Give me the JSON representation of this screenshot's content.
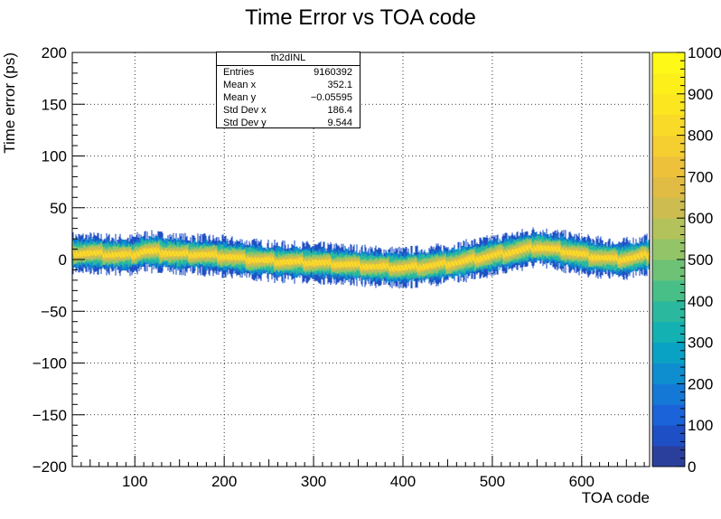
{
  "chart_data": {
    "type": "heatmap",
    "title": "Time Error vs TOA code",
    "xlabel": "TOA code",
    "ylabel": "Time error (ps)",
    "xlim": [
      30,
      676
    ],
    "ylim": [
      -200,
      200
    ],
    "x_ticks": [
      "100",
      "200",
      "300",
      "400",
      "500",
      "600"
    ],
    "y_ticks": [
      "200",
      "150",
      "100",
      "50",
      "0",
      "−50",
      "−100",
      "−150",
      "−200"
    ],
    "z_ticks": [
      "0",
      "100",
      "200",
      "300",
      "400",
      "500",
      "600",
      "700",
      "800",
      "900",
      "1000"
    ],
    "zlim": [
      0,
      1000
    ],
    "grid": true,
    "band_center": [
      {
        "x": 30,
        "y": 6
      },
      {
        "x": 50,
        "y": 6
      },
      {
        "x": 70,
        "y": 5
      },
      {
        "x": 95,
        "y": 4
      },
      {
        "x": 110,
        "y": 8
      },
      {
        "x": 130,
        "y": 7
      },
      {
        "x": 150,
        "y": 5
      },
      {
        "x": 170,
        "y": 5
      },
      {
        "x": 200,
        "y": 3
      },
      {
        "x": 230,
        "y": 0
      },
      {
        "x": 260,
        "y": -2
      },
      {
        "x": 300,
        "y": -3
      },
      {
        "x": 340,
        "y": -5
      },
      {
        "x": 370,
        "y": -7
      },
      {
        "x": 400,
        "y": -8
      },
      {
        "x": 430,
        "y": -6
      },
      {
        "x": 460,
        "y": -3
      },
      {
        "x": 490,
        "y": 2
      },
      {
        "x": 520,
        "y": 7
      },
      {
        "x": 550,
        "y": 12
      },
      {
        "x": 580,
        "y": 8
      },
      {
        "x": 610,
        "y": 3
      },
      {
        "x": 640,
        "y": 0
      },
      {
        "x": 660,
        "y": 2
      },
      {
        "x": 676,
        "y": 5
      }
    ],
    "stats_box": {
      "name": "th2dINL",
      "rows": [
        {
          "label": "Entries",
          "value": "9160392"
        },
        {
          "label": "Mean x",
          "value": "352.1"
        },
        {
          "label": "Mean y",
          "value": "−0.05595"
        },
        {
          "label": "Std Dev x",
          "value": "186.4"
        },
        {
          "label": "Std Dev y",
          "value": "9.544"
        }
      ]
    },
    "palette": [
      "#2a3f9c",
      "#1f4fc4",
      "#1a63d8",
      "#1479d6",
      "#0e8ecf",
      "#0aa2c4",
      "#14b1b3",
      "#2ab99e",
      "#49bf88",
      "#6dc276",
      "#93c468",
      "#b3c25b",
      "#cdbd50",
      "#e0bc44",
      "#edc23a",
      "#f5ce30",
      "#f9da28",
      "#fbe620",
      "#fdf01a",
      "#fff917"
    ]
  }
}
